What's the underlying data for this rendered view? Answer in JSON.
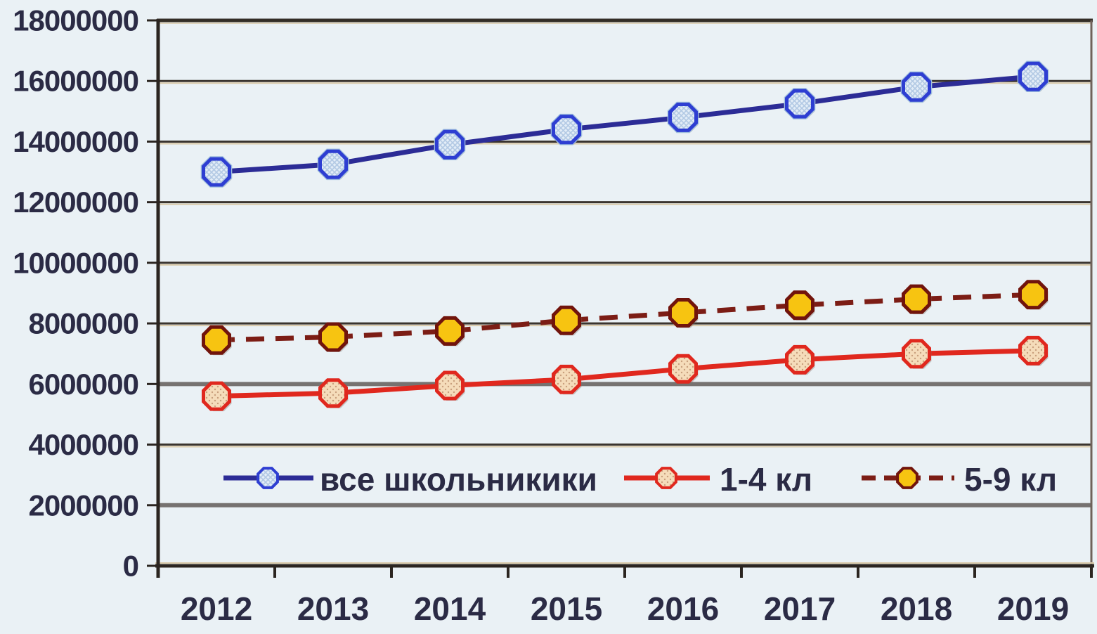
{
  "chart": {
    "background": "#eaf1f5",
    "text_color": "#2b2b45",
    "grid_color": "#3a342e",
    "grid_color_light": "#767270",
    "grid_fringe_color": "#d9c9a8",
    "axis_color": "#2b2520",
    "right_border_color": "#6e625a"
  },
  "chart_data": {
    "type": "line",
    "title": "",
    "xlabel": "",
    "ylabel": "",
    "categories": [
      "2012",
      "2013",
      "2014",
      "2015",
      "2016",
      "2017",
      "2018",
      "2019"
    ],
    "y_tick_labels": [
      "0",
      "2000000",
      "4000000",
      "6000000",
      "8000000",
      "10000000",
      "12000000",
      "14000000",
      "16000000",
      "18000000"
    ],
    "ylim": [
      0,
      18000000
    ],
    "y_tick_step": 2000000,
    "grid": true,
    "legend_position": "bottom-inside",
    "series": [
      {
        "name": "все школьникики",
        "values": [
          13000000,
          13250000,
          13900000,
          14400000,
          14800000,
          15250000,
          15800000,
          16150000
        ],
        "line_color": "#2c2c96",
        "line_style": "solid",
        "marker": "octagon",
        "marker_fill": "#dde9f5",
        "marker_border": "#2e3ed2"
      },
      {
        "name": "1-4 кл",
        "values": [
          5600000,
          5700000,
          5950000,
          6150000,
          6500000,
          6800000,
          7000000,
          7100000
        ],
        "line_color": "#e0281e",
        "line_style": "solid",
        "marker": "octagon",
        "marker_fill": "#f5dcba",
        "marker_border": "#e0281e"
      },
      {
        "name": "5-9 кл",
        "values": [
          7450000,
          7550000,
          7750000,
          8100000,
          8350000,
          8600000,
          8800000,
          8950000
        ],
        "line_color": "#7c1d15",
        "line_style": "dashed",
        "marker": "octagon",
        "marker_fill": "#f7c411",
        "marker_border": "#71140c"
      }
    ]
  }
}
